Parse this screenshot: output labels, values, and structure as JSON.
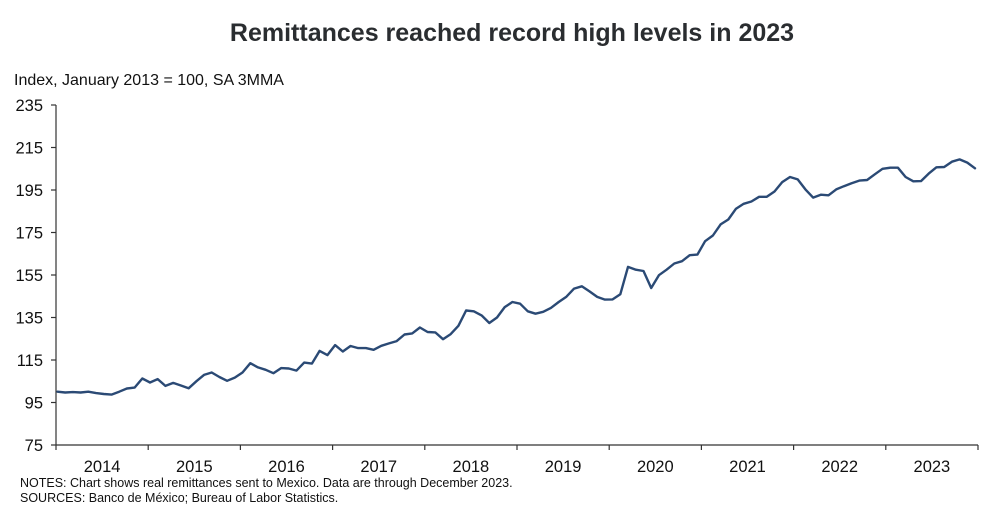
{
  "chart_data": {
    "type": "line",
    "title": "Remittances reached record high levels in 2023",
    "ylabel": "Index, January 2013 = 100, SA 3MMA",
    "xlabel": "",
    "ylim": [
      75,
      235
    ],
    "yticks": [
      75,
      95,
      115,
      135,
      155,
      175,
      195,
      215,
      235
    ],
    "ytick_labels": [
      "75",
      "95",
      "115",
      "135",
      "155",
      "175",
      "195",
      "215",
      "235"
    ],
    "xlim": [
      "2014-01",
      "2023-12"
    ],
    "xtick_labels": [
      "2014",
      "2015",
      "2016",
      "2017",
      "2018",
      "2019",
      "2020",
      "2021",
      "2022",
      "2023"
    ],
    "grid": false,
    "legend": "none",
    "line_color": "#2b4a75",
    "series": [
      {
        "name": "Real remittances to Mexico",
        "frequency": "monthly",
        "start": "2014-01",
        "values": [
          100.1,
          99.7,
          99.9,
          99.7,
          100.1,
          99.4,
          99.0,
          98.7,
          100.1,
          101.6,
          102.0,
          106.3,
          104.4,
          106.0,
          102.8,
          104.2,
          103.0,
          101.7,
          105.0,
          108.0,
          109.1,
          107.0,
          105.2,
          106.7,
          109.1,
          113.5,
          111.5,
          110.4,
          108.8,
          111.2,
          111.0,
          110.0,
          113.8,
          113.3,
          119.3,
          117.3,
          122.0,
          119.0,
          121.6,
          120.6,
          120.6,
          119.8,
          121.7,
          122.8,
          123.9,
          127.0,
          127.5,
          130.3,
          128.2,
          128.0,
          124.8,
          127.2,
          131.1,
          138.3,
          137.9,
          136.0,
          132.4,
          135.0,
          139.9,
          142.3,
          141.5,
          137.9,
          136.8,
          137.7,
          139.5,
          142.3,
          144.8,
          148.6,
          149.7,
          147.3,
          144.7,
          143.4,
          143.5,
          145.9,
          158.8,
          157.5,
          156.9,
          148.9,
          154.9,
          157.5,
          160.4,
          161.5,
          164.3,
          164.6,
          170.9,
          173.6,
          178.8,
          181.1,
          186.2,
          188.5,
          189.6,
          191.8,
          191.8,
          194.3,
          198.7,
          201.1,
          200.0,
          195.3,
          191.4,
          192.8,
          192.5,
          195.3,
          196.8,
          198.2,
          199.4,
          199.7,
          202.4,
          205.0,
          205.5,
          205.5,
          201.1,
          199.1,
          199.2,
          202.7,
          205.7,
          205.8,
          208.3,
          209.4,
          207.9,
          205.2
        ]
      }
    ],
    "notes": "NOTES: Chart shows real remittances sent to Mexico. Data are through December 2023.",
    "sources": "SOURCES: Banco de México; Bureau of Labor Statistics."
  }
}
